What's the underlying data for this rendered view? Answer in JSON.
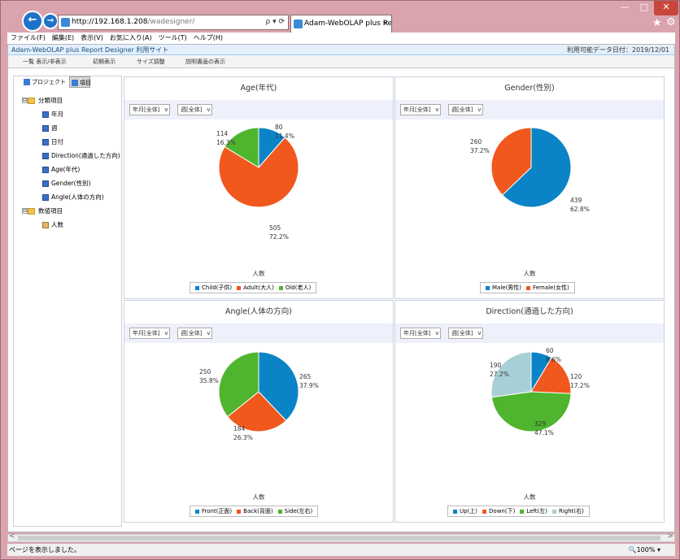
{
  "browser": {
    "address": {
      "host": "http://192.168.1.208",
      "path": "/wadesigner/",
      "tools": "ρ ▾ ⟳"
    },
    "tab_title": "Adam-WebOLAP plus Re...",
    "tab_close": "×",
    "window_controls": {
      "minimize": "—",
      "maximize": "□",
      "close": "✕"
    },
    "nav_back": "←",
    "nav_forward": "→",
    "favorites_icon": "★",
    "tools_icon": "⚙"
  },
  "menubar": [
    "ファイル(F)",
    "編集(E)",
    "表示(V)",
    "お気に入り(A)",
    "ツール(T)",
    "ヘルプ(H)"
  ],
  "site": {
    "title": "Adam-WebOLAP plus Report Designer 利用サイト",
    "date_label": "利用可能データ日付：2019/12/01"
  },
  "toolbar": [
    "一覧 表示/非表示",
    "初期表示",
    "サイズ調整",
    "説明書画の表示"
  ],
  "left_panel": {
    "tabs": [
      "プロジェクト",
      "項目"
    ],
    "tree": [
      {
        "label": "分類項目",
        "kind": "folder",
        "expand": "⊟"
      },
      {
        "label": "年月",
        "kind": "dim"
      },
      {
        "label": "週",
        "kind": "dim"
      },
      {
        "label": "日付",
        "kind": "dim"
      },
      {
        "label": "Direction(通過した方向)",
        "kind": "dim"
      },
      {
        "label": "Age(年代)",
        "kind": "dim"
      },
      {
        "label": "Gender(性別)",
        "kind": "dim"
      },
      {
        "label": "Angle(人体の方向)",
        "kind": "dim"
      },
      {
        "label": "数値項目",
        "kind": "folder",
        "expand": "⊟"
      },
      {
        "label": "人数",
        "kind": "measure"
      }
    ],
    "scroll_left": "<",
    "scroll_right": ">"
  },
  "filters": {
    "month": "年月[全体]",
    "week": "週[全体]",
    "arrow": "v"
  },
  "measure_label": "人数",
  "colors": {
    "blue": "#0a84c6",
    "orange": "#f0581e",
    "green": "#4fb52e",
    "lightblue": "#a7d0d6"
  },
  "chart_data": [
    {
      "type": "pie",
      "title": "Age(年代)",
      "measure": "人数",
      "slices": [
        {
          "name": "Child(子供)",
          "value": 80,
          "pct": "11.4%",
          "color": "#0a84c6"
        },
        {
          "name": "Adult(大人)",
          "value": 505,
          "pct": "72.2%",
          "color": "#f0581e"
        },
        {
          "name": "Old(老人)",
          "value": 114,
          "pct": "16.3%",
          "color": "#4fb52e"
        }
      ]
    },
    {
      "type": "pie",
      "title": "Gender(性別)",
      "measure": "人数",
      "slices": [
        {
          "name": "Male(男性)",
          "value": 439,
          "pct": "62.8%",
          "color": "#0a84c6"
        },
        {
          "name": "Female(女性)",
          "value": 260,
          "pct": "37.2%",
          "color": "#f0581e"
        }
      ]
    },
    {
      "type": "pie",
      "title": "Angle(人体の方向)",
      "measure": "人数",
      "slices": [
        {
          "name": "Front(正面)",
          "value": 265,
          "pct": "37.9%",
          "color": "#0a84c6"
        },
        {
          "name": "Back(背面)",
          "value": 184,
          "pct": "26.3%",
          "color": "#f0581e"
        },
        {
          "name": "Side(左右)",
          "value": 250,
          "pct": "35.8%",
          "color": "#4fb52e"
        }
      ]
    },
    {
      "type": "pie",
      "title": "Direction(通過した方向)",
      "measure": "人数",
      "slices": [
        {
          "name": "Up(上)",
          "value": 60,
          "pct": "8.6%",
          "color": "#0a84c6"
        },
        {
          "name": "Down(下)",
          "value": 120,
          "pct": "17.2%",
          "color": "#f0581e"
        },
        {
          "name": "Left(左)",
          "value": 329,
          "pct": "47.1%",
          "color": "#4fb52e"
        },
        {
          "name": "Right(右)",
          "value": 190,
          "pct": "27.2%",
          "color": "#a7d0d6"
        }
      ]
    }
  ],
  "statusbar": {
    "text": "ページを表示しました。",
    "zoom": "🔍100% ▾"
  },
  "hscroll": {
    "left": "<",
    "right": ">"
  }
}
